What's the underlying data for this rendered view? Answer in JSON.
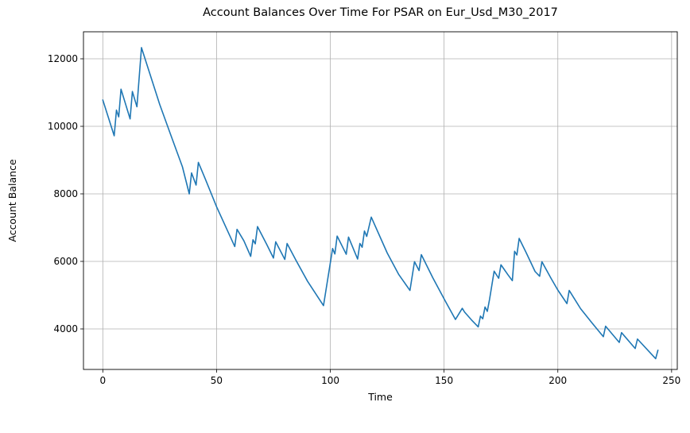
{
  "chart_data": {
    "type": "line",
    "title": "Account Balances Over Time For PSAR on Eur_Usd_M30_2017",
    "xlabel": "Time",
    "ylabel": "Account Balance",
    "xlim": [
      -8.5,
      252.5
    ],
    "ylim": [
      2800,
      12800
    ],
    "grid": true,
    "x_ticks": [
      0,
      50,
      100,
      150,
      200,
      250
    ],
    "y_ticks": [
      4000,
      6000,
      8000,
      10000,
      12000
    ],
    "line_color": "#1f77b4",
    "series": [
      {
        "name": "Account Balance",
        "x": [
          0,
          5,
          6,
          7,
          8,
          12,
          13,
          15,
          17,
          20,
          25,
          30,
          35,
          38,
          39,
          41,
          42,
          45,
          50,
          55,
          58,
          59,
          62,
          65,
          66,
          67,
          68,
          72,
          75,
          76,
          80,
          81,
          85,
          90,
          97,
          101,
          102,
          103,
          107,
          108,
          112,
          113,
          114,
          115,
          116,
          118,
          125,
          130,
          135,
          137,
          139,
          140,
          145,
          150,
          155,
          158,
          159,
          162,
          165,
          166,
          167,
          168,
          169,
          170,
          172,
          174,
          175,
          178,
          180,
          181,
          182,
          183,
          186,
          190,
          192,
          193,
          197,
          200,
          204,
          205,
          210,
          215,
          220,
          221,
          227,
          228,
          234,
          235,
          243,
          244
        ],
        "y": [
          10780,
          9720,
          10480,
          10280,
          11100,
          10220,
          11030,
          10580,
          12330,
          11700,
          10650,
          9720,
          8800,
          8000,
          8620,
          8260,
          8930,
          8450,
          7620,
          6880,
          6440,
          6950,
          6610,
          6150,
          6640,
          6520,
          7030,
          6510,
          6100,
          6580,
          6060,
          6530,
          6020,
          5410,
          4690,
          6380,
          6220,
          6750,
          6210,
          6720,
          6070,
          6530,
          6420,
          6900,
          6740,
          7310,
          6250,
          5620,
          5140,
          5990,
          5730,
          6200,
          5520,
          4890,
          4280,
          4610,
          4500,
          4270,
          4060,
          4380,
          4300,
          4650,
          4520,
          4880,
          5710,
          5500,
          5900,
          5610,
          5430,
          6300,
          6190,
          6680,
          6270,
          5700,
          5560,
          5990,
          5500,
          5150,
          4750,
          5140,
          4600,
          4180,
          3770,
          4080,
          3600,
          3890,
          3420,
          3700,
          3120,
          3370
        ]
      }
    ]
  }
}
